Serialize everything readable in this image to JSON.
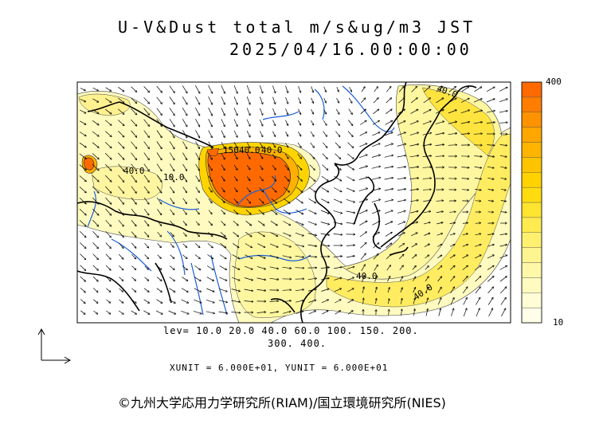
{
  "title": {
    "line1": "U-V&Dust total m/s&ug/m3 JST",
    "line2": "2025/04/16.00:00:00"
  },
  "contour_labels": {
    "north_a": "40.0",
    "north_b": "40.0",
    "north_c": "150",
    "west_a": "40.0",
    "west_b": "10.0",
    "ocean_a": "40.0",
    "ocean_b": "40.0",
    "ne": "40.0"
  },
  "colorbar": {
    "max_label": "400",
    "min_label": "10",
    "colors": [
      "#ff6a00",
      "#ff7e00",
      "#ff9200",
      "#ffa600",
      "#ffb500",
      "#ffc400",
      "#ffd200",
      "#ffdc10",
      "#ffe430",
      "#ffeb50",
      "#fff070",
      "#fff590",
      "#fff8a8",
      "#fffbc0",
      "#fffdd5",
      "#fffee8"
    ]
  },
  "levels": {
    "line1": "lev= 10.0 20.0 40.0 60.0 100. 150. 200.",
    "line2": "300. 400."
  },
  "units": "XUNIT = 6.000E+01, YUNIT = 6.000E+01",
  "copyright": "©九州大学応用力学研究所(RIAM)/国立環境研究所(NIES)",
  "colors": {
    "coast": "#000000",
    "river": "#1a5fd6",
    "dust_high": "#ff6a00",
    "dust_low": "#fffbc0"
  }
}
